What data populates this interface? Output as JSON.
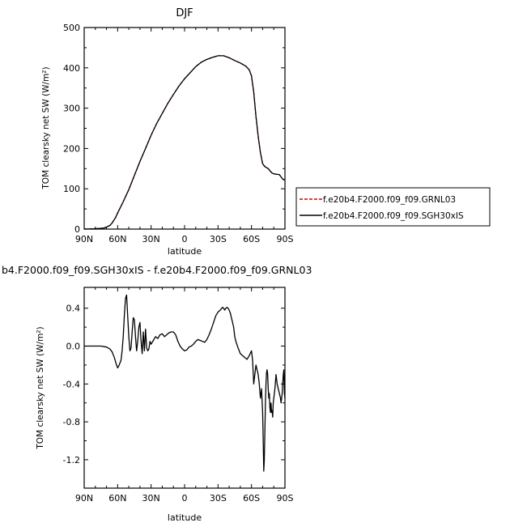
{
  "chart_data": [
    {
      "type": "line",
      "title": "DJF",
      "xlabel": "latitude",
      "ylabel": "TOM clearsky net SW (W/m²)",
      "xlim": [
        90,
        -90
      ],
      "ylim": [
        0,
        500
      ],
      "x_tick_values": [
        90,
        60,
        30,
        0,
        -30,
        -60,
        -90
      ],
      "x_tick_labels": [
        "90N",
        "60N",
        "30N",
        "0",
        "30S",
        "60S",
        "90S"
      ],
      "y_ticks": [
        0,
        100,
        200,
        300,
        400,
        500
      ],
      "y_tick_labels": [
        "0",
        "100",
        "200",
        "300",
        "400",
        "500"
      ],
      "legend": {
        "position": "right",
        "entries": [
          {
            "label": "f.e20b4.F2000.f09_f09.GRNL03",
            "color": "#cc0000",
            "dash": "dashed"
          },
          {
            "label": "f.e20b4.F2000.f09_f09.SGH30xIS",
            "color": "#000000",
            "dash": "solid"
          }
        ]
      },
      "series": [
        {
          "name": "f.e20b4.F2000.f09_f09.GRNL03",
          "color": "#cc0000",
          "dash": "dashed",
          "x": [
            90,
            80,
            75,
            72,
            70,
            67,
            65,
            62,
            60,
            55,
            50,
            45,
            40,
            35,
            30,
            25,
            20,
            15,
            10,
            5,
            0,
            -5,
            -10,
            -15,
            -20,
            -25,
            -30,
            -35,
            -40,
            -45,
            -50,
            -55,
            -58,
            -60,
            -62,
            -64,
            -66,
            -68,
            -70,
            -72,
            -75,
            -78,
            -80,
            -85,
            -88,
            -90
          ],
          "values": [
            0,
            1,
            2,
            3,
            5,
            9,
            15,
            28,
            40,
            68,
            98,
            133,
            168,
            200,
            233,
            262,
            287,
            312,
            334,
            355,
            373,
            388,
            403,
            414,
            421,
            426,
            430,
            430,
            425,
            418,
            412,
            404,
            395,
            380,
            340,
            280,
            230,
            190,
            162,
            155,
            150,
            140,
            137,
            135,
            124,
            121
          ]
        },
        {
          "name": "f.e20b4.F2000.f09_f09.SGH30xIS",
          "color": "#000000",
          "dash": "solid",
          "x": [
            90,
            80,
            75,
            72,
            70,
            67,
            65,
            62,
            60,
            55,
            50,
            45,
            40,
            35,
            30,
            25,
            20,
            15,
            10,
            5,
            0,
            -5,
            -10,
            -15,
            -20,
            -25,
            -30,
            -35,
            -40,
            -45,
            -50,
            -55,
            -58,
            -60,
            -62,
            -64,
            -66,
            -68,
            -70,
            -72,
            -75,
            -78,
            -80,
            -85,
            -88,
            -90
          ],
          "values": [
            0,
            1,
            2,
            3,
            5,
            9,
            15,
            28,
            40,
            68,
            98,
            133,
            168,
            200,
            233,
            262,
            287,
            312,
            334,
            355,
            373,
            388,
            403,
            414,
            421,
            426,
            430,
            430,
            425,
            418,
            412,
            404,
            395,
            380,
            340,
            280,
            230,
            190,
            162,
            155,
            150,
            140,
            137,
            135,
            124,
            121
          ]
        }
      ]
    },
    {
      "type": "line",
      "title": "b4.F2000.f09_f09.SGH30xIS - f.e20b4.F2000.f09_f09.GRNL03",
      "xlabel": "latitude",
      "ylabel": "TOM clearsky net SW (W/m²)",
      "xlim": [
        90,
        -90
      ],
      "ylim": [
        -1.5,
        0.62
      ],
      "x_tick_values": [
        90,
        60,
        30,
        0,
        -30,
        -60,
        -90
      ],
      "x_tick_labels": [
        "90N",
        "60N",
        "30N",
        "0",
        "30S",
        "60S",
        "90S"
      ],
      "y_ticks": [
        -1.2,
        -0.8,
        -0.4,
        0.0,
        0.4
      ],
      "y_tick_labels": [
        "-1.2",
        "-0.8",
        "-0.4",
        "0.0",
        "0.4"
      ],
      "series": [
        {
          "color": "#000000",
          "x": [
            90,
            85,
            80,
            75,
            70,
            67,
            65,
            63,
            61,
            60,
            59,
            57,
            56,
            55,
            54,
            53,
            52,
            51,
            50,
            49,
            48,
            47,
            46,
            45,
            44,
            43,
            42,
            41,
            40,
            39,
            38,
            37,
            36,
            35,
            34,
            33,
            32,
            31,
            30,
            28,
            26,
            24,
            22,
            20,
            18,
            16,
            14,
            12,
            10,
            8,
            6,
            4,
            2,
            0,
            -2,
            -4,
            -6,
            -8,
            -10,
            -12,
            -14,
            -16,
            -18,
            -20,
            -22,
            -24,
            -26,
            -28,
            -30,
            -32,
            -34,
            -35,
            -36,
            -37,
            -38,
            -39,
            -40,
            -41,
            -42,
            -43,
            -44,
            -45,
            -46,
            -48,
            -50,
            -52,
            -54,
            -56,
            -58,
            -60,
            -61,
            -62,
            -63,
            -64,
            -65,
            -66,
            -67,
            -68,
            -69,
            -70,
            -70.5,
            -71,
            -71.5,
            -72,
            -72.5,
            -73,
            -73.5,
            -74,
            -74.5,
            -75,
            -75.5,
            -76,
            -76.5,
            -77,
            -77.5,
            -78,
            -78.5,
            -79,
            -79.5,
            -80,
            -81,
            -82,
            -83,
            -84,
            -85,
            -86,
            -86.5,
            -87,
            -87.5,
            -88,
            -88.5,
            -89,
            -89.5,
            -90
          ],
          "values": [
            0,
            0,
            0,
            0,
            -0.01,
            -0.03,
            -0.06,
            -0.12,
            -0.2,
            -0.23,
            -0.21,
            -0.15,
            -0.05,
            0.1,
            0.32,
            0.5,
            0.54,
            0.32,
            0.1,
            -0.05,
            -0.02,
            0.15,
            0.3,
            0.28,
            0.1,
            -0.05,
            0.05,
            0.2,
            0.25,
            0.05,
            -0.08,
            0.15,
            -0.05,
            0.18,
            -0.02,
            -0.05,
            -0.03,
            0.05,
            0.02,
            0.06,
            0.1,
            0.08,
            0.12,
            0.13,
            0.1,
            0.12,
            0.14,
            0.15,
            0.15,
            0.12,
            0.05,
            0.0,
            -0.03,
            -0.05,
            -0.04,
            -0.01,
            0.0,
            0.02,
            0.05,
            0.07,
            0.06,
            0.05,
            0.04,
            0.07,
            0.12,
            0.18,
            0.25,
            0.32,
            0.36,
            0.38,
            0.41,
            0.4,
            0.38,
            0.4,
            0.41,
            0.4,
            0.38,
            0.35,
            0.3,
            0.25,
            0.2,
            0.1,
            0.05,
            -0.02,
            -0.08,
            -0.1,
            -0.12,
            -0.14,
            -0.1,
            -0.05,
            -0.15,
            -0.4,
            -0.3,
            -0.2,
            -0.25,
            -0.3,
            -0.4,
            -0.55,
            -0.45,
            -0.7,
            -1.0,
            -1.32,
            -1.2,
            -0.9,
            -0.6,
            -0.4,
            -0.28,
            -0.25,
            -0.3,
            -0.45,
            -0.55,
            -0.5,
            -0.65,
            -0.7,
            -0.6,
            -0.7,
            -0.68,
            -0.75,
            -0.6,
            -0.55,
            -0.45,
            -0.3,
            -0.4,
            -0.45,
            -0.5,
            -0.55,
            -0.6,
            -0.55,
            -0.5,
            -0.4,
            -0.3,
            -0.25,
            -0.5,
            -0.55
          ]
        }
      ]
    }
  ]
}
